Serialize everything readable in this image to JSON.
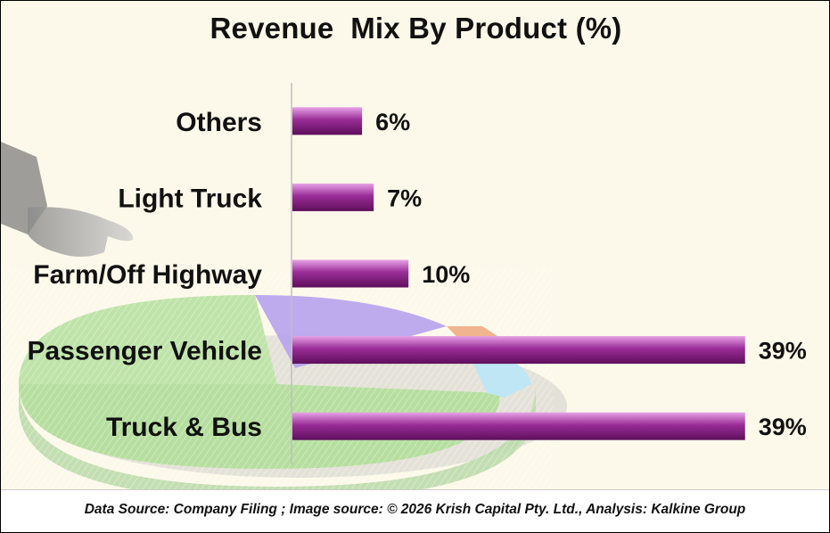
{
  "chart_data": {
    "type": "bar",
    "orientation": "horizontal",
    "title": "Revenue  Mix By Product (%)",
    "categories": [
      "Others",
      "Light Truck",
      "Farm/Off Highway",
      "Passenger Vehicle",
      "Truck & Bus"
    ],
    "values": [
      6,
      7,
      10,
      39,
      39
    ],
    "data_labels": [
      "6%",
      "7%",
      "10%",
      "39%",
      "39%"
    ],
    "xlim": [
      0,
      52
    ],
    "xlabel": "",
    "ylabel": "",
    "grid": false,
    "bar_color": "#7d1a7a",
    "bar_highlight": "#e7a2e6"
  },
  "footer": {
    "text": "Data Source: Company Filing ; Image source: © 2026 Krish Capital Pty. Ltd., Analysis: Kalkine Group"
  },
  "colors": {
    "background": "#fdf9ea",
    "axis": "#bfbfbf"
  }
}
